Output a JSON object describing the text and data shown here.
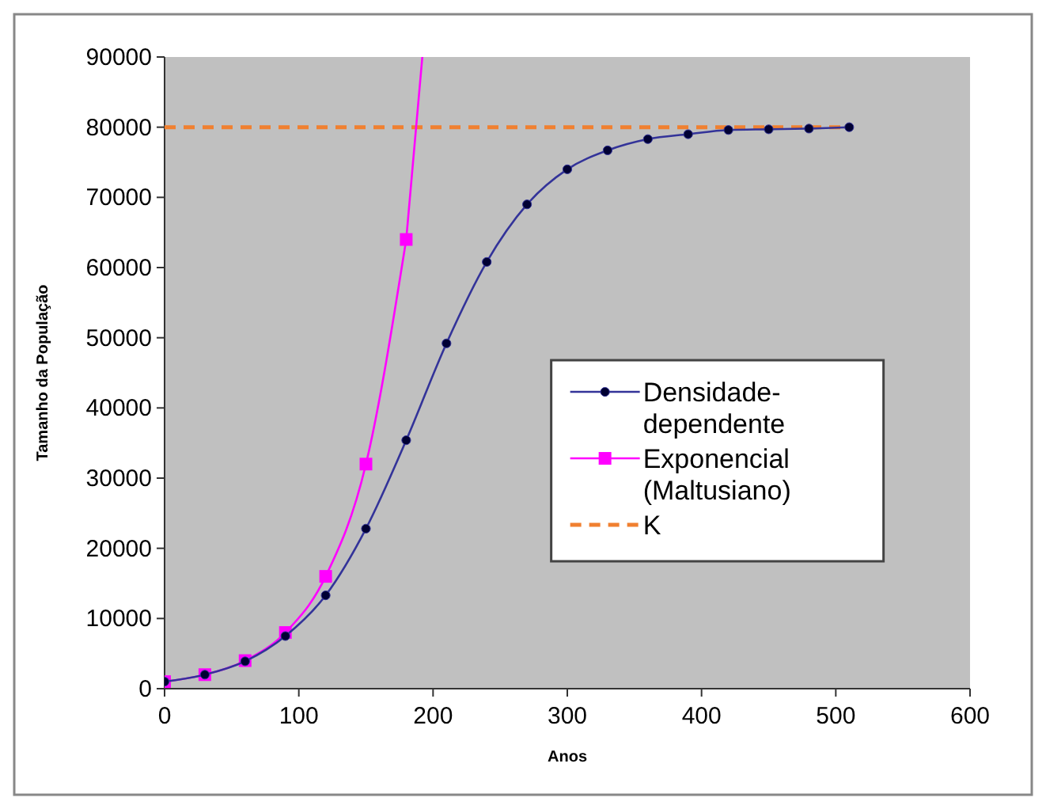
{
  "chart_data": {
    "type": "line",
    "xlabel": "Anos",
    "ylabel": "Tamanho da População",
    "xlim": [
      0,
      600
    ],
    "xticks": [
      0,
      100,
      200,
      300,
      400,
      500,
      600
    ],
    "ylim": [
      0,
      90000
    ],
    "yticks": [
      0,
      10000,
      20000,
      30000,
      40000,
      50000,
      60000,
      70000,
      80000,
      90000
    ],
    "grid": false,
    "legend": "right",
    "series": [
      {
        "name": "Densidade-dependente",
        "color": "#333399",
        "marker": "circle",
        "x": [
          0,
          30,
          60,
          90,
          120,
          150,
          180,
          210,
          240,
          270,
          300,
          330,
          360,
          390,
          420,
          450,
          480,
          510
        ],
        "values": [
          1000,
          2000,
          3900,
          7500,
          13300,
          22800,
          35400,
          49200,
          60800,
          69000,
          74000,
          76700,
          78300,
          79000,
          79600,
          79700,
          79800,
          80000
        ]
      },
      {
        "name": "Exponencial (Maltusiano)",
        "color": "#ff00ff",
        "marker": "square",
        "x": [
          0,
          30,
          60,
          90,
          120,
          150,
          180
        ],
        "values": [
          1000,
          2000,
          4000,
          8000,
          16000,
          32000,
          64000
        ]
      },
      {
        "color": "#ff00ff",
        "marker": "none",
        "x": [
          180,
          192
        ],
        "values": [
          64000,
          90000
        ]
      },
      {
        "name": "K",
        "color": "#f08030",
        "marker": "none",
        "line_style": "dashed",
        "x": [
          0,
          510
        ],
        "values": [
          80000,
          80000
        ]
      }
    ]
  }
}
